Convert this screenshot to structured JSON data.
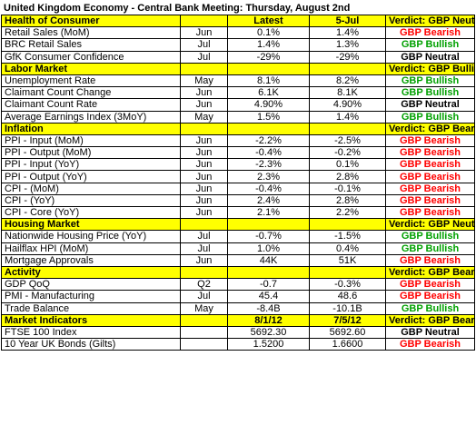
{
  "title": "United Kingdom Economy - Central Bank Meeting: Thursday, August 2nd",
  "colors": {
    "section_bg": "#ffff00",
    "bearish": "#ff0000",
    "bullish": "#00a000",
    "neutral": "#000000"
  },
  "header": {
    "label": "Health of Consumer",
    "col_latest": "Latest",
    "col_prev": "5-Jul",
    "verdict": "Verdict: GBP Neutral"
  },
  "sections": [
    {
      "name": "Health of Consumer",
      "verdict": null,
      "rows": [
        {
          "indicator": "Retail Sales (MoM)",
          "period": "Jun",
          "latest": "0.1%",
          "prev": "1.4%",
          "verdict": "GBP Bearish",
          "tone": "bearish"
        },
        {
          "indicator": "BRC Retail Sales",
          "period": "Jul",
          "latest": "1.4%",
          "prev": "1.3%",
          "verdict": "GBP Bullish",
          "tone": "bullish"
        },
        {
          "indicator": "GfK Consumer Confidence",
          "period": "Jul",
          "latest": "-29%",
          "prev": "-29%",
          "verdict": "GBP Neutral",
          "tone": "neutral"
        }
      ]
    },
    {
      "name": "Labor Market",
      "verdict": "Verdict: GBP Bullish",
      "verdict_tone": "bullish",
      "rows": [
        {
          "indicator": "Unemployment Rate",
          "period": "May",
          "latest": "8.1%",
          "prev": "8.2%",
          "verdict": "GBP Bullish",
          "tone": "bullish"
        },
        {
          "indicator": "Claimant Count Change",
          "period": "Jun",
          "latest": "6.1K",
          "prev": "8.1K",
          "verdict": "GBP Bullish",
          "tone": "bullish"
        },
        {
          "indicator": "Claimant Count Rate",
          "period": "Jun",
          "latest": "4.90%",
          "prev": "4.90%",
          "verdict": "GBP Neutral",
          "tone": "neutral"
        },
        {
          "indicator": "Average Earnings Index (3MoY)",
          "period": "May",
          "latest": "1.5%",
          "prev": "1.4%",
          "verdict": "GBP Bullish",
          "tone": "bullish"
        }
      ]
    },
    {
      "name": "Inflation",
      "verdict": "Verdict: GBP Bearish",
      "verdict_tone": "bearish",
      "rows": [
        {
          "indicator": "PPI - Input (MoM)",
          "period": "Jun",
          "latest": "-2.2%",
          "prev": "-2.5%",
          "verdict": "GBP Bearish",
          "tone": "bearish"
        },
        {
          "indicator": "PPI - Output (MoM)",
          "period": "Jun",
          "latest": "-0.4%",
          "prev": "-0.2%",
          "verdict": "GBP Bearish",
          "tone": "bearish"
        },
        {
          "indicator": "PPI - Input (YoY)",
          "period": "Jun",
          "latest": "-2.3%",
          "prev": "0.1%",
          "verdict": "GBP Bearish",
          "tone": "bearish"
        },
        {
          "indicator": "PPI - Output (YoY)",
          "period": "Jun",
          "latest": "2.3%",
          "prev": "2.8%",
          "verdict": "GBP Bearish",
          "tone": "bearish"
        },
        {
          "indicator": "CPI - (MoM)",
          "period": "Jun",
          "latest": "-0.4%",
          "prev": "-0.1%",
          "verdict": "GBP Bearish",
          "tone": "bearish"
        },
        {
          "indicator": "CPI - (YoY)",
          "period": "Jun",
          "latest": "2.4%",
          "prev": "2.8%",
          "verdict": "GBP Bearish",
          "tone": "bearish"
        },
        {
          "indicator": "CPI - Core (YoY)",
          "period": "Jun",
          "latest": "2.1%",
          "prev": "2.2%",
          "verdict": "GBP Bearish",
          "tone": "bearish"
        }
      ]
    },
    {
      "name": "Housing Market",
      "verdict": "Verdict: GBP Neutral",
      "verdict_tone": "neutral",
      "rows": [
        {
          "indicator": "Nationwide Housing Price (YoY)",
          "period": "Jul",
          "latest": "-0.7%",
          "prev": "-1.5%",
          "verdict": "GBP Bullish",
          "tone": "bullish"
        },
        {
          "indicator": "Hailflax HPI (MoM)",
          "period": "Jul",
          "latest": "1.0%",
          "prev": "0.4%",
          "verdict": "GBP Bullish",
          "tone": "bullish"
        },
        {
          "indicator": "Mortgage Approvals",
          "period": "Jun",
          "latest": "44K",
          "prev": "51K",
          "verdict": "GBP Bearish",
          "tone": "bearish"
        }
      ]
    },
    {
      "name": "Activity",
      "verdict": "Verdict: GBP Bearish",
      "verdict_tone": "bearish",
      "rows": [
        {
          "indicator": "GDP QoQ",
          "period": "Q2",
          "latest": "-0.7",
          "prev": "-0.3%",
          "verdict": "GBP Bearish",
          "tone": "bearish"
        },
        {
          "indicator": "PMI - Manufacturing",
          "period": "Jul",
          "latest": "45.4",
          "prev": "48.6",
          "verdict": "GBP Bearish",
          "tone": "bearish"
        },
        {
          "indicator": "Trade Balance",
          "period": "May",
          "latest": "-8.4B",
          "prev": "-10.1B",
          "verdict": "GBP Bullish",
          "tone": "bullish"
        }
      ]
    },
    {
      "name": "Market Indicators",
      "col_latest": "8/1/12",
      "col_prev": "7/5/12",
      "verdict": "Verdict: GBP Bearish",
      "verdict_tone": "bearish",
      "rows": [
        {
          "indicator": "FTSE 100 Index",
          "period": "",
          "latest": "5692.30",
          "prev": "5692.60",
          "verdict": "GBP Neutral",
          "tone": "neutral",
          "boxed": true
        },
        {
          "indicator": "10 Year UK Bonds (Gilts)",
          "period": "",
          "latest": "1.5200",
          "prev": "1.6600",
          "verdict": "GBP Bearish",
          "tone": "bearish"
        }
      ]
    }
  ]
}
